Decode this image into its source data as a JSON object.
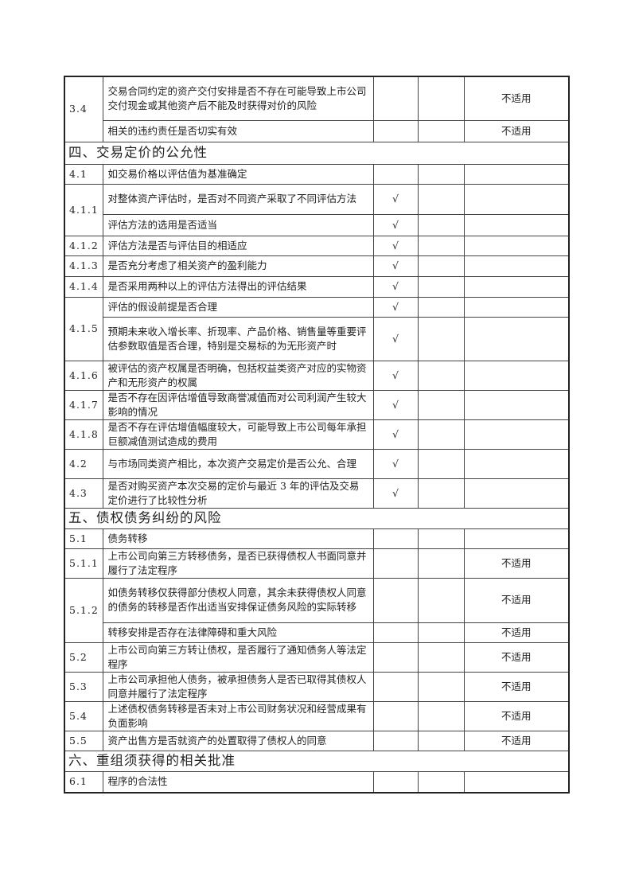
{
  "rows": [
    {
      "num": "3.4",
      "items": [
        {
          "text": "交易合同约定的资产交付安排是否不存在可能导致上市公司交付现金或其他资产后不能及时获得对价的风险",
          "c3": "",
          "c4": "",
          "c5": "不适用"
        },
        {
          "text": "相关的违约责任是否切实有效",
          "c3": "",
          "c4": "",
          "c5": "不适用"
        }
      ]
    },
    {
      "section": "四、交易定价的公允性"
    },
    {
      "num": "4.1",
      "items": [
        {
          "text": "如交易价格以评估值为基准确定",
          "c3": "",
          "c4": "",
          "c5": ""
        }
      ]
    },
    {
      "num": "4.1.1",
      "items": [
        {
          "text": "对整体资产评估时，是否对不同资产采取了不同评估方法",
          "c3": "√",
          "c4": "",
          "c5": ""
        },
        {
          "text": "评估方法的选用是否适当",
          "c3": "√",
          "c4": "",
          "c5": ""
        }
      ]
    },
    {
      "num": "4.1.2",
      "items": [
        {
          "text": "评估方法是否与评估目的相适应",
          "c3": "√",
          "c4": "",
          "c5": ""
        }
      ]
    },
    {
      "num": "4.1.3",
      "items": [
        {
          "text": "是否充分考虑了相关资产的盈利能力",
          "c3": "√",
          "c4": "",
          "c5": ""
        }
      ]
    },
    {
      "num": "4.1.4",
      "items": [
        {
          "text": "是否采用两种以上的评估方法得出的评估结果",
          "c3": "√",
          "c4": "",
          "c5": ""
        }
      ]
    },
    {
      "num": "4.1.5",
      "items": [
        {
          "text": "评估的假设前提是否合理",
          "c3": "√",
          "c4": "",
          "c5": ""
        },
        {
          "text": "预期未来收入增长率、折现率、产品价格、销售量等重要评估参数取值是否合理，特别是交易标的为无形资产时",
          "c3": "√",
          "c4": "",
          "c5": ""
        }
      ]
    },
    {
      "num": "4.1.6",
      "items": [
        {
          "text": "被评估的资产权属是否明确，包括权益类资产对应的实物资产和无形资产的权属",
          "c3": "√",
          "c4": "",
          "c5": ""
        }
      ]
    },
    {
      "num": "4.1.7",
      "items": [
        {
          "text": "是否不存在因评估增值导致商誉减值而对公司利润产生较大影响的情况",
          "c3": "√",
          "c4": "",
          "c5": ""
        }
      ]
    },
    {
      "num": "4.1.8",
      "items": [
        {
          "text": "是否不存在评估增值幅度较大，可能导致上市公司每年承担巨额减值测试造成的费用",
          "c3": "√",
          "c4": "",
          "c5": ""
        }
      ]
    },
    {
      "num": "4.2",
      "items": [
        {
          "text": "与市场同类资产相比，本次资产交易定价是否公允、合理",
          "c3": "√",
          "c4": "",
          "c5": ""
        }
      ]
    },
    {
      "num": "4.3",
      "items": [
        {
          "text": "是否对购买资产本次交易的定价与最近 3 年的评估及交易定价进行了比较性分析",
          "c3": "√",
          "c4": "",
          "c5": ""
        }
      ]
    },
    {
      "section": "五、债权债务纠纷的风险"
    },
    {
      "num": "5.1",
      "items": [
        {
          "text": "债务转移",
          "c3": "",
          "c4": "",
          "c5": ""
        }
      ]
    },
    {
      "num": "5.1.1",
      "items": [
        {
          "text": "上市公司向第三方转移债务，是否已获得债权人书面同意并履行了法定程序",
          "c3": "",
          "c4": "",
          "c5": "不适用"
        }
      ]
    },
    {
      "num": "5.1.2",
      "items": [
        {
          "text": "如债务转移仅获得部分债权人同意，其余未获得债权人同意的债务的转移是否作出适当安排保证债务风险的实际转移",
          "c3": "",
          "c4": "",
          "c5": "不适用"
        },
        {
          "text": "转移安排是否存在法律障碍和重大风险",
          "c3": "",
          "c4": "",
          "c5": "不适用"
        }
      ]
    },
    {
      "num": "5.2",
      "items": [
        {
          "text": "上市公司向第三方转让债权，是否履行了通知债务人等法定程序",
          "c3": "",
          "c4": "",
          "c5": "不适用"
        }
      ]
    },
    {
      "num": "5.3",
      "items": [
        {
          "text": "上市公司承担他人债务，被承担债务人是否已取得其债权人同意并履行了法定程序",
          "c3": "",
          "c4": "",
          "c5": "不适用"
        }
      ]
    },
    {
      "num": "5.4",
      "items": [
        {
          "text": "上述债权债务转移是否未对上市公司财务状况和经营成果有负面影响",
          "c3": "",
          "c4": "",
          "c5": "不适用"
        }
      ]
    },
    {
      "num": "5.5",
      "items": [
        {
          "text": "资产出售方是否就资产的处置取得了债权人的同意",
          "c3": "",
          "c4": "",
          "c5": "不适用"
        }
      ]
    },
    {
      "section": "六、重组须获得的相关批准"
    },
    {
      "num": "6.1",
      "items": [
        {
          "text": "程序的合法性",
          "c3": "",
          "c4": "",
          "c5": ""
        }
      ]
    }
  ]
}
